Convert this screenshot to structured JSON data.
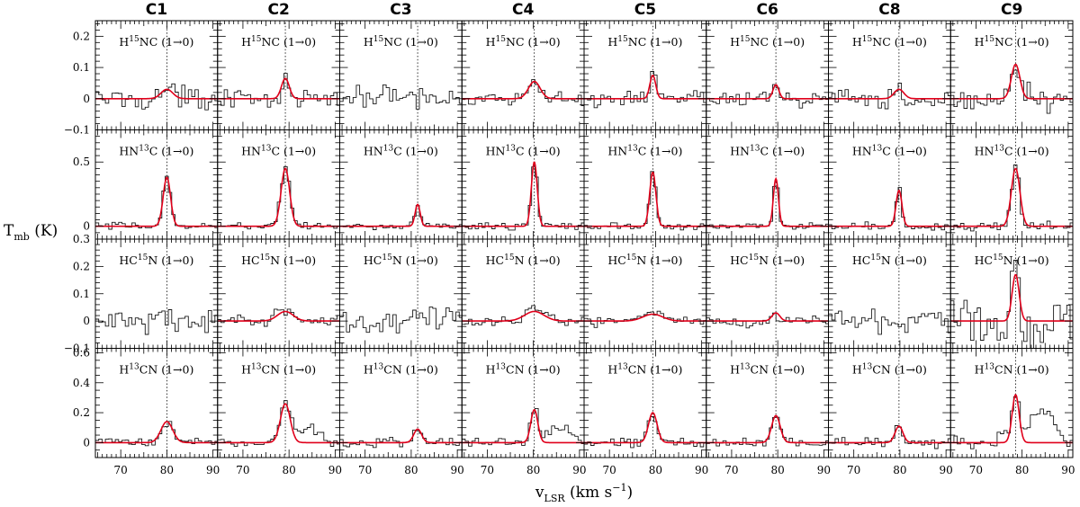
{
  "chart_data": {
    "type": "line",
    "title": "",
    "xlabel": "v",
    "xlabel_sub": "LSR",
    "xlabel_units": "(km s",
    "xlabel_exp": "−1",
    "xlabel_close": ")",
    "ylabel": "T",
    "ylabel_sub": "mb",
    "ylabel_units": "(K)",
    "xlim": [
      64.5,
      91
    ],
    "x_ticks": [
      70,
      80,
      90
    ],
    "x_tick_labels": [
      "70",
      "80",
      "90"
    ],
    "columns": [
      "C1",
      "C2",
      "C3",
      "C4",
      "C5",
      "C6",
      "C8",
      "C9"
    ],
    "column_vlsr": [
      80.0,
      79.2,
      81.4,
      80.2,
      79.4,
      79.6,
      79.8,
      78.6
    ],
    "rows": [
      {
        "label_prefix": "H",
        "label_sup": "15",
        "label_suffix": "NC",
        "transition": "(1→0)",
        "ylim": [
          -0.1,
          0.25
        ],
        "y_ticks": [
          -0.1,
          0,
          0.1,
          0.2
        ],
        "y_tick_labels": [
          "−0.1",
          "0",
          "0.1",
          "0.2"
        ],
        "series": [
          {
            "name": "C1",
            "detected": true,
            "peak": 0.03,
            "center": 80.0,
            "fwhm": 3.0,
            "noise": 0.018
          },
          {
            "name": "C2",
            "detected": true,
            "peak": 0.065,
            "center": 79.2,
            "fwhm": 2.0,
            "noise": 0.014
          },
          {
            "name": "C3",
            "detected": false,
            "peak": 0.0,
            "center": 81.4,
            "fwhm": 2.0,
            "noise": 0.022
          },
          {
            "name": "C4",
            "detected": true,
            "peak": 0.055,
            "center": 80.2,
            "fwhm": 3.0,
            "noise": 0.012
          },
          {
            "name": "C5",
            "detected": true,
            "peak": 0.075,
            "center": 79.4,
            "fwhm": 1.5,
            "noise": 0.012
          },
          {
            "name": "C6",
            "detected": true,
            "peak": 0.045,
            "center": 79.6,
            "fwhm": 1.5,
            "noise": 0.012
          },
          {
            "name": "C8",
            "detected": true,
            "peak": 0.03,
            "center": 79.8,
            "fwhm": 2.5,
            "noise": 0.015
          },
          {
            "name": "C9",
            "detected": true,
            "peak": 0.11,
            "center": 78.6,
            "fwhm": 2.2,
            "noise": 0.022
          }
        ]
      },
      {
        "label_prefix": "HN",
        "label_sup": "13",
        "label_suffix": "C",
        "transition": "(1→0)",
        "ylim": [
          -0.1,
          0.75
        ],
        "y_ticks": [
          0,
          0.5
        ],
        "y_tick_labels": [
          "0",
          "0.5"
        ],
        "series": [
          {
            "name": "C1",
            "detected": true,
            "peak": 0.38,
            "center": 80.0,
            "fwhm": 1.9,
            "noise": 0.015
          },
          {
            "name": "C2",
            "detected": true,
            "peak": 0.45,
            "center": 79.2,
            "fwhm": 2.2,
            "noise": 0.015
          },
          {
            "name": "C3",
            "detected": true,
            "peak": 0.17,
            "center": 81.4,
            "fwhm": 1.3,
            "noise": 0.015
          },
          {
            "name": "C4",
            "detected": true,
            "peak": 0.5,
            "center": 80.2,
            "fwhm": 1.5,
            "noise": 0.015
          },
          {
            "name": "C5",
            "detected": true,
            "peak": 0.42,
            "center": 79.4,
            "fwhm": 1.6,
            "noise": 0.015
          },
          {
            "name": "C6",
            "detected": true,
            "peak": 0.37,
            "center": 79.6,
            "fwhm": 1.3,
            "noise": 0.012
          },
          {
            "name": "C8",
            "detected": true,
            "peak": 0.28,
            "center": 79.8,
            "fwhm": 1.5,
            "noise": 0.015
          },
          {
            "name": "C9",
            "detected": true,
            "peak": 0.45,
            "center": 78.6,
            "fwhm": 2.2,
            "noise": 0.025
          }
        ]
      },
      {
        "label_prefix": "HC",
        "label_sup": "15",
        "label_suffix": "N",
        "transition": "(1→0)",
        "ylim": [
          -0.1,
          0.3
        ],
        "y_ticks": [
          -0.1,
          0,
          0.1,
          0.2,
          0.3
        ],
        "y_tick_labels": [
          "−0.1",
          "0",
          "0.1",
          "0.2",
          "0.3"
        ],
        "series": [
          {
            "name": "C1",
            "detected": false,
            "peak": 0.0,
            "center": 80.0,
            "fwhm": 2.0,
            "noise": 0.025
          },
          {
            "name": "C2",
            "detected": true,
            "peak": 0.035,
            "center": 79.2,
            "fwhm": 4.0,
            "noise": 0.012
          },
          {
            "name": "C3",
            "detected": false,
            "peak": 0.0,
            "center": 81.4,
            "fwhm": 2.0,
            "noise": 0.025
          },
          {
            "name": "C4",
            "detected": true,
            "peak": 0.035,
            "center": 80.2,
            "fwhm": 5.0,
            "noise": 0.01
          },
          {
            "name": "C5",
            "detected": true,
            "peak": 0.025,
            "center": 79.4,
            "fwhm": 5.0,
            "noise": 0.01
          },
          {
            "name": "C6",
            "detected": true,
            "peak": 0.03,
            "center": 79.6,
            "fwhm": 2.0,
            "noise": 0.01
          },
          {
            "name": "C8",
            "detected": false,
            "peak": 0.0,
            "center": 79.8,
            "fwhm": 2.0,
            "noise": 0.02
          },
          {
            "name": "C9",
            "detected": true,
            "peak": 0.17,
            "center": 78.6,
            "fwhm": 1.8,
            "noise": 0.05
          }
        ]
      },
      {
        "label_prefix": "H",
        "label_sup": "13",
        "label_suffix": "CN",
        "transition": "(1→0)",
        "ylim": [
          -0.1,
          0.63
        ],
        "y_ticks": [
          0,
          0.2,
          0.4,
          0.6
        ],
        "y_tick_labels": [
          "0",
          "0.2",
          "0.4",
          "0.6"
        ],
        "series": [
          {
            "name": "C1",
            "detected": true,
            "peak": 0.14,
            "center": 80.0,
            "fwhm": 3.0,
            "noise": 0.018
          },
          {
            "name": "C2",
            "detected": true,
            "peak": 0.26,
            "center": 79.2,
            "fwhm": 2.5,
            "noise": 0.02
          },
          {
            "name": "C3",
            "detected": true,
            "peak": 0.09,
            "center": 81.4,
            "fwhm": 2.0,
            "noise": 0.018
          },
          {
            "name": "C4",
            "detected": true,
            "peak": 0.22,
            "center": 80.2,
            "fwhm": 1.8,
            "noise": 0.018
          },
          {
            "name": "C5",
            "detected": true,
            "peak": 0.2,
            "center": 79.4,
            "fwhm": 2.2,
            "noise": 0.018
          },
          {
            "name": "C6",
            "detected": true,
            "peak": 0.18,
            "center": 79.6,
            "fwhm": 2.2,
            "noise": 0.018
          },
          {
            "name": "C8",
            "detected": true,
            "peak": 0.11,
            "center": 79.8,
            "fwhm": 2.0,
            "noise": 0.018
          },
          {
            "name": "C9",
            "detected": true,
            "peak": 0.32,
            "center": 78.6,
            "fwhm": 1.8,
            "noise": 0.03
          }
        ]
      }
    ]
  },
  "colors": {
    "fit": "#e0001b",
    "spectrum": "#1a1a1a",
    "axes": "#000000"
  }
}
